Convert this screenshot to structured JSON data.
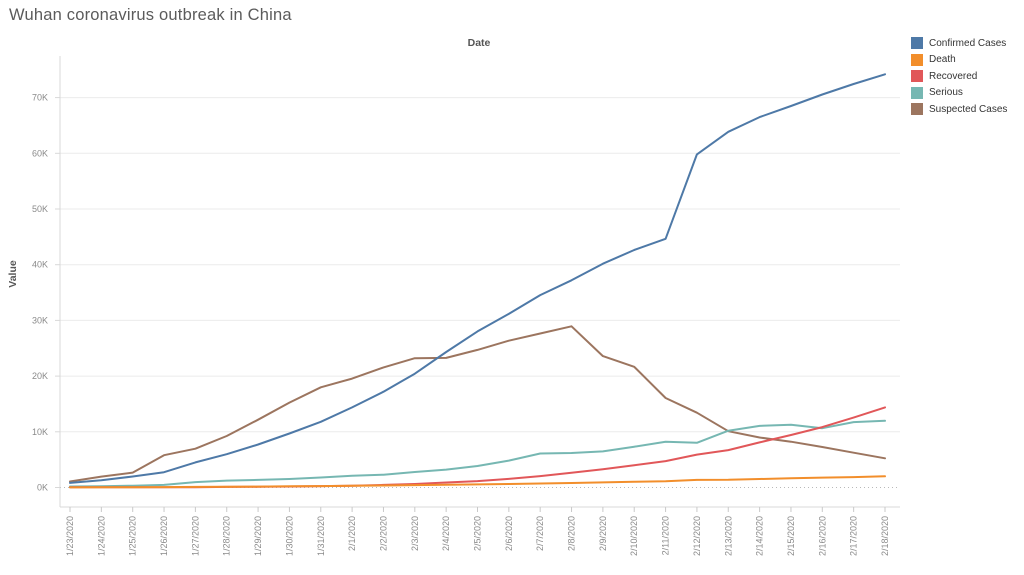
{
  "page": {
    "background": "#ffffff"
  },
  "chart_data": {
    "type": "line",
    "title": "Wuhan coronavirus outbreak in China",
    "xlabel": "Date",
    "ylabel": "Value",
    "x": [
      "1/23/2020",
      "1/24/2020",
      "1/25/2020",
      "1/26/2020",
      "1/27/2020",
      "1/28/2020",
      "1/29/2020",
      "1/30/2020",
      "1/31/2020",
      "2/1/2020",
      "2/2/2020",
      "2/3/2020",
      "2/4/2020",
      "2/5/2020",
      "2/6/2020",
      "2/7/2020",
      "2/8/2020",
      "2/9/2020",
      "2/10/2020",
      "2/11/2020",
      "2/12/2020",
      "2/13/2020",
      "2/14/2020",
      "2/15/2020",
      "2/16/2020",
      "2/17/2020",
      "2/18/2020"
    ],
    "series": [
      {
        "name": "Confirmed Cases",
        "color": "#4e79a7",
        "values": [
          830,
          1287,
          1975,
          2744,
          4515,
          5974,
          7711,
          9692,
          11791,
          14380,
          17205,
          20438,
          24324,
          28018,
          31161,
          34546,
          37198,
          40171,
          42638,
          44653,
          59804,
          63851,
          66492,
          68500,
          70548,
          72436,
          74185
        ]
      },
      {
        "name": "Death",
        "color": "#f28e2b",
        "values": [
          25,
          41,
          56,
          80,
          106,
          132,
          170,
          213,
          259,
          304,
          361,
          425,
          490,
          563,
          636,
          722,
          811,
          908,
          1016,
          1113,
          1367,
          1380,
          1523,
          1665,
          1770,
          1868,
          2004
        ]
      },
      {
        "name": "Recovered",
        "color": "#e15759",
        "values": [
          34,
          38,
          49,
          51,
          60,
          103,
          124,
          171,
          243,
          328,
          475,
          632,
          892,
          1153,
          1540,
          2050,
          2649,
          3281,
          3996,
          4740,
          5911,
          6723,
          8096,
          9419,
          10844,
          12552,
          14376
        ]
      },
      {
        "name": "Serious",
        "color": "#76b7b2",
        "values": [
          177,
          237,
          324,
          461,
          976,
          1239,
          1370,
          1527,
          1795,
          2110,
          2296,
          2788,
          3219,
          3859,
          4821,
          6101,
          6188,
          6484,
          7333,
          8204,
          8030,
          10204,
          11053,
          11272,
          10644,
          11741,
          11977
        ]
      },
      {
        "name": "Suspected Cases",
        "color": "#9c755f",
        "values": [
          1072,
          1965,
          2684,
          5794,
          6973,
          9239,
          12167,
          15238,
          17988,
          19544,
          21558,
          23214,
          23260,
          24702,
          26359,
          27657,
          28942,
          23589,
          21675,
          16067,
          13435,
          10109,
          8969,
          8228,
          7264,
          6242,
          5248
        ]
      }
    ],
    "ylim": [
      0,
      70000
    ],
    "yticks": [
      "0K",
      "10K",
      "20K",
      "30K",
      "40K",
      "50K",
      "60K",
      "70K"
    ],
    "ytick_interval": 10000,
    "grid": "horizontal",
    "zero_line_dashed": true,
    "legend_position": "top-right"
  }
}
